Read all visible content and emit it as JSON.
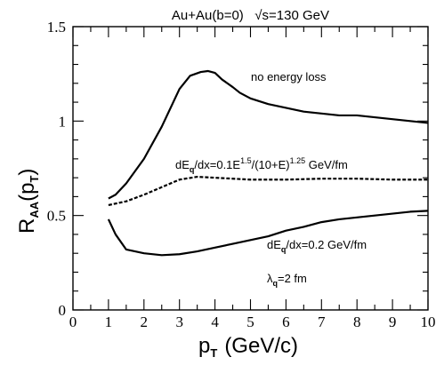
{
  "chart_data": {
    "type": "line",
    "title": "Au+Au(b=0)   √s=130 GeV",
    "xlabel": "p",
    "xlabel_sub": "T",
    "xlabel_unit": "(GeV/c)",
    "ylabel": "R",
    "ylabel_sub": "AA",
    "ylabel_arg": "(p",
    "ylabel_arg_sub": "T",
    "ylabel_close": ")",
    "xlim": [
      0,
      10
    ],
    "ylim": [
      0,
      1.5
    ],
    "x_ticks": [
      "0",
      "1",
      "2",
      "3",
      "4",
      "5",
      "6",
      "7",
      "8",
      "9",
      "10"
    ],
    "y_ticks": [
      "0",
      "0.5",
      "1",
      "1.5"
    ],
    "grid": false,
    "series": [
      {
        "style": "solid",
        "x": [
          1.0,
          1.2,
          1.5,
          2.0,
          2.5,
          3.0,
          3.3,
          3.6,
          3.8,
          4.0,
          4.2,
          4.5,
          4.7,
          5.0,
          5.5,
          6.0,
          6.5,
          7.0,
          7.5,
          8.0,
          8.5,
          9.0,
          9.5,
          10.0
        ],
        "y": [
          0.59,
          0.61,
          0.67,
          0.8,
          0.97,
          1.17,
          1.24,
          1.26,
          1.265,
          1.255,
          1.22,
          1.18,
          1.15,
          1.12,
          1.09,
          1.07,
          1.05,
          1.04,
          1.03,
          1.03,
          1.02,
          1.01,
          1.0,
          0.99
        ]
      },
      {
        "style": "dashed",
        "x": [
          1.0,
          1.5,
          2.0,
          2.5,
          3.0,
          3.5,
          4.0,
          5.0,
          6.0,
          7.0,
          8.0,
          9.0,
          10.0
        ],
        "y": [
          0.555,
          0.575,
          0.61,
          0.65,
          0.69,
          0.705,
          0.7,
          0.69,
          0.69,
          0.695,
          0.695,
          0.69,
          0.69
        ],
        "annotation": "dE_q/dx=0.1E^1.5/(10+E)^1.25 GeV/fm"
      },
      {
        "style": "solid",
        "x": [
          1.0,
          1.2,
          1.5,
          2.0,
          2.5,
          3.0,
          3.5,
          4.0,
          4.5,
          5.0,
          5.5,
          6.0,
          6.5,
          7.0,
          7.5,
          8.0,
          8.5,
          9.0,
          9.5,
          10.0
        ],
        "y": [
          0.48,
          0.4,
          0.32,
          0.3,
          0.29,
          0.295,
          0.31,
          0.33,
          0.35,
          0.37,
          0.39,
          0.42,
          0.44,
          0.465,
          0.48,
          0.49,
          0.5,
          0.51,
          0.52,
          0.525
        ]
      }
    ],
    "annotations": {
      "no_loss": "no energy loss",
      "dedx1_a": "dE",
      "dedx1_q": "q",
      "dedx1_b": "/dx=0.1E",
      "dedx1_exp1": "1.5",
      "dedx1_c": "/(10+E)",
      "dedx1_exp2": "1.25",
      "dedx1_d": " GeV/fm",
      "dedx2_a": "dE",
      "dedx2_q": "q",
      "dedx2_b": "/dx=0.2 GeV/fm",
      "lambda_sym": "λ",
      "lambda_q": "q",
      "lambda_rest": "=2 fm"
    }
  }
}
